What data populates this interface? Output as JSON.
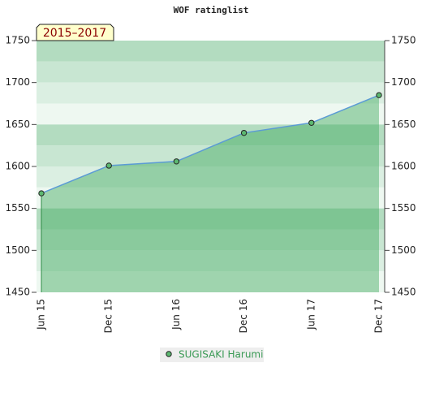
{
  "chart_data": {
    "type": "area",
    "title": "WOF ratinglist",
    "annotation": "2015–2017",
    "categories": [
      "Jun 15",
      "Dec 15",
      "Jun 16",
      "Dec 16",
      "Jun 17",
      "Dec 17"
    ],
    "series": [
      {
        "name": "SUGISAKI Harumi",
        "color": "#5b9bd5",
        "fill": "#3fa85d",
        "marker_color": "#5cb870",
        "values": [
          1568,
          1601,
          1606,
          1640,
          1652,
          1685
        ]
      }
    ],
    "ylim": [
      1450,
      1750
    ],
    "yticks": [
      1450,
      1500,
      1550,
      1600,
      1650,
      1700,
      1750
    ],
    "y2lim": [
      1450,
      1750
    ],
    "y2ticks": [
      1450,
      1500,
      1550,
      1600,
      1650,
      1700,
      1750
    ]
  }
}
